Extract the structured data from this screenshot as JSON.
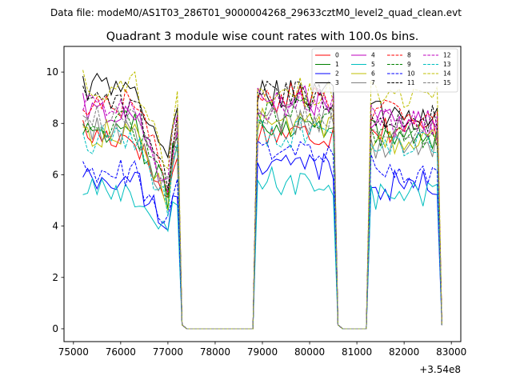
{
  "chart_data": {
    "type": "line",
    "suptitle": "Data file: modeM0/AS1T03_286T01_9000004268_29633cztM0_level2_quad_clean.evt",
    "title": "Quadrant 3 module wise count rates with 100.0s bins.",
    "xlabel": "",
    "ylabel": "",
    "x_offset_label": "+3.54e8",
    "xlim": [
      74800,
      83200
    ],
    "ylim": [
      -0.5,
      11.0
    ],
    "x_ticks": [
      75000,
      76000,
      77000,
      78000,
      79000,
      80000,
      81000,
      82000,
      83000
    ],
    "x_tick_labels": [
      "75000",
      "76000",
      "77000",
      "78000",
      "79000",
      "80000",
      "81000",
      "82000",
      "83000"
    ],
    "y_ticks": [
      0,
      2,
      4,
      6,
      8,
      10
    ],
    "y_tick_labels": [
      "0",
      "2",
      "4",
      "6",
      "8",
      "10"
    ],
    "segments": [
      {
        "start": 75200,
        "end": 77300
      },
      {
        "start": 78900,
        "end": 80600
      },
      {
        "start": 81300,
        "end": 82800
      }
    ],
    "gaps": [
      {
        "start": 77300,
        "end": 78900
      },
      {
        "start": 80600,
        "end": 81300
      }
    ],
    "legend": {
      "position": "top-right",
      "columns": 4
    },
    "series": [
      {
        "name": "0",
        "color": "#ff0000",
        "dash": "solid",
        "levels": [
          7.5,
          7.6,
          7.8
        ]
      },
      {
        "name": "1",
        "color": "#008000",
        "dash": "solid",
        "levels": [
          7.8,
          8.0,
          7.6
        ]
      },
      {
        "name": "2",
        "color": "#0000ff",
        "dash": "solid",
        "levels": [
          5.8,
          6.4,
          5.6
        ]
      },
      {
        "name": "3",
        "color": "#000000",
        "dash": "solid",
        "levels": [
          9.4,
          9.2,
          8.3
        ]
      },
      {
        "name": "4",
        "color": "#bf00bf",
        "dash": "solid",
        "levels": [
          8.4,
          8.9,
          8.0
        ]
      },
      {
        "name": "5",
        "color": "#00bfbf",
        "dash": "solid",
        "levels": [
          5.3,
          5.7,
          5.2
        ]
      },
      {
        "name": "6",
        "color": "#bfbf00",
        "dash": "solid",
        "levels": [
          7.6,
          8.0,
          7.2
        ]
      },
      {
        "name": "7",
        "color": "#808080",
        "dash": "solid",
        "levels": [
          7.7,
          8.1,
          7.1
        ]
      },
      {
        "name": "8",
        "color": "#ff0000",
        "dash": "dashed",
        "levels": [
          8.8,
          9.0,
          8.4
        ]
      },
      {
        "name": "9",
        "color": "#008000",
        "dash": "dashed",
        "levels": [
          7.9,
          8.4,
          7.6
        ]
      },
      {
        "name": "10",
        "color": "#0000ff",
        "dash": "dashed",
        "levels": [
          6.1,
          6.8,
          6.0
        ]
      },
      {
        "name": "11",
        "color": "#000000",
        "dash": "dashed",
        "levels": [
          8.7,
          9.1,
          8.2
        ]
      },
      {
        "name": "12",
        "color": "#bf00bf",
        "dash": "dashed",
        "levels": [
          8.6,
          8.7,
          8.0
        ]
      },
      {
        "name": "13",
        "color": "#00bfbf",
        "dash": "dashed",
        "levels": [
          7.4,
          7.6,
          7.1
        ]
      },
      {
        "name": "14",
        "color": "#bfbf00",
        "dash": "dashed",
        "levels": [
          9.5,
          9.2,
          9.0
        ]
      },
      {
        "name": "15",
        "color": "#808080",
        "dash": "dashed",
        "levels": [
          8.2,
          8.3,
          7.8
        ]
      }
    ]
  }
}
